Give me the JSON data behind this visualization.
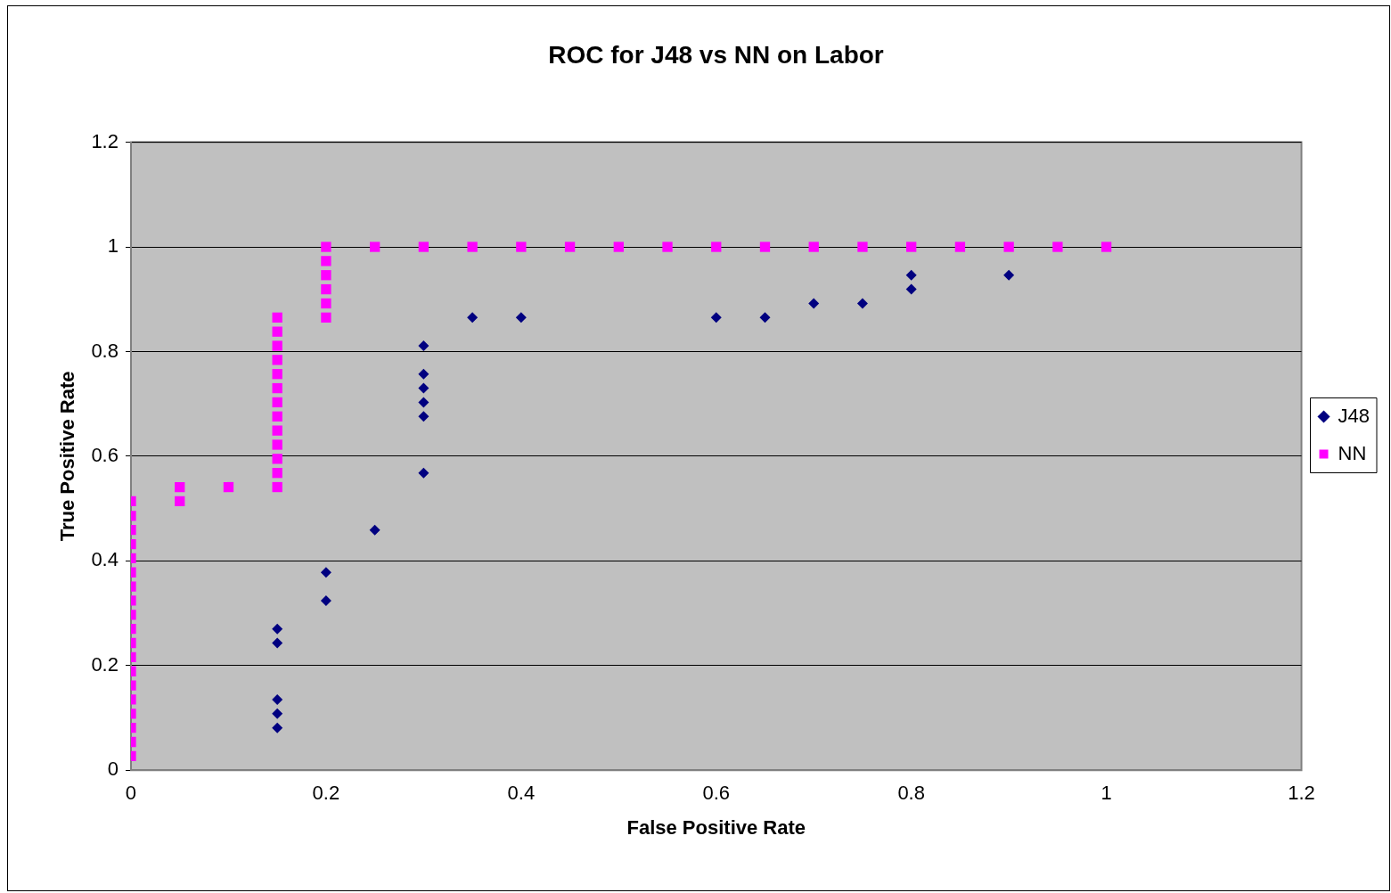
{
  "chart_data": {
    "type": "scatter",
    "title": "ROC for J48 vs NN on Labor",
    "xlabel": "False Positive Rate",
    "ylabel": "True Positive Rate",
    "xlim": [
      0,
      1.2
    ],
    "xticks": [
      0,
      0.2,
      0.4,
      0.6,
      0.8,
      1,
      1.2
    ],
    "ylim": [
      0,
      1.2
    ],
    "yticks": [
      0,
      0.2,
      0.4,
      0.6,
      0.8,
      1,
      1.2
    ],
    "grid": "y",
    "legend": "right",
    "series": [
      {
        "name": "J48",
        "color": "#000080",
        "marker": "diamond",
        "x": [
          0.15,
          0.15,
          0.15,
          0.15,
          0.15,
          0.2,
          0.2,
          0.25,
          0.3,
          0.3,
          0.3,
          0.3,
          0.3,
          0.3,
          0.35,
          0.4,
          0.6,
          0.65,
          0.7,
          0.75,
          0.8,
          0.8,
          0.9
        ],
        "values": [
          0.081,
          0.108,
          0.135,
          0.243,
          0.27,
          0.324,
          0.378,
          0.459,
          0.568,
          0.676,
          0.703,
          0.73,
          0.757,
          0.811,
          0.865,
          0.865,
          0.865,
          0.865,
          0.892,
          0.892,
          0.919,
          0.946,
          0.946
        ]
      },
      {
        "name": "NN",
        "color": "#ff00ff",
        "marker": "square",
        "x": [
          0,
          0,
          0,
          0,
          0,
          0,
          0,
          0,
          0,
          0,
          0,
          0,
          0,
          0,
          0,
          0,
          0,
          0,
          0,
          0.05,
          0.05,
          0.1,
          0.15,
          0.15,
          0.15,
          0.15,
          0.15,
          0.15,
          0.15,
          0.15,
          0.15,
          0.15,
          0.15,
          0.15,
          0.15,
          0.2,
          0.2,
          0.2,
          0.2,
          0.2,
          0.2,
          0.25,
          0.3,
          0.35,
          0.4,
          0.45,
          0.5,
          0.55,
          0.6,
          0.65,
          0.7,
          0.75,
          0.8,
          0.85,
          0.9,
          0.95,
          1
        ],
        "values": [
          0.027,
          0.054,
          0.081,
          0.108,
          0.135,
          0.162,
          0.189,
          0.216,
          0.243,
          0.27,
          0.297,
          0.324,
          0.351,
          0.378,
          0.405,
          0.432,
          0.459,
          0.486,
          0.514,
          0.514,
          0.541,
          0.541,
          0.541,
          0.568,
          0.595,
          0.622,
          0.649,
          0.676,
          0.703,
          0.73,
          0.757,
          0.784,
          0.811,
          0.838,
          0.865,
          0.865,
          0.892,
          0.919,
          0.946,
          0.973,
          1,
          1,
          1,
          1,
          1,
          1,
          1,
          1,
          1,
          1,
          1,
          1,
          1,
          1,
          1,
          1,
          1
        ]
      }
    ]
  }
}
